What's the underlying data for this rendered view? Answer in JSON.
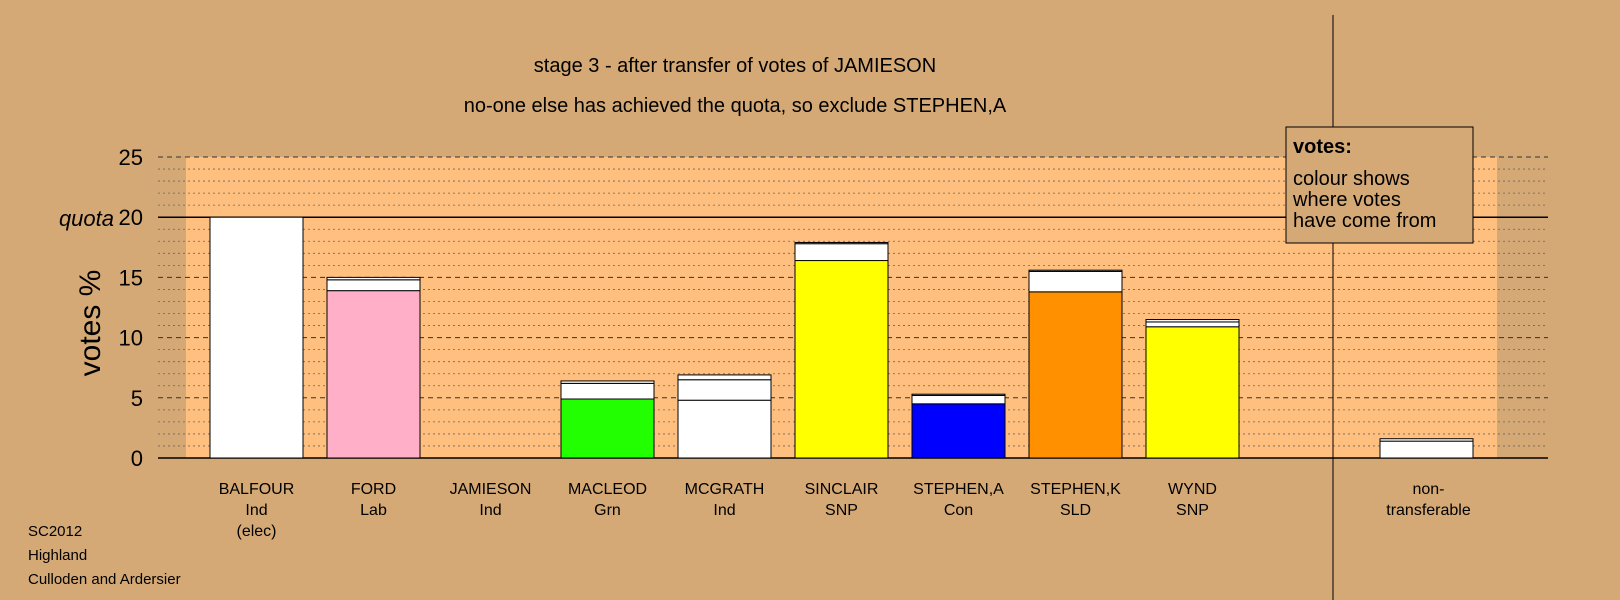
{
  "chart_data": {
    "type": "bar",
    "title_lines": [
      "stage 3 - after transfer of votes of JAMIESON",
      "no-one else has achieved the quota, so exclude STEPHEN,A"
    ],
    "ylabel": "votes %",
    "ylim": [
      0,
      25
    ],
    "yticks": [
      0,
      5,
      10,
      15,
      20,
      25
    ],
    "grid": true,
    "quota": {
      "label": "quota",
      "value": 20
    },
    "legend": {
      "title": "votes:",
      "lines": [
        "colour shows",
        "where votes",
        "have come from"
      ],
      "position": "top-right"
    },
    "candidates": [
      {
        "name": "BALFOUR",
        "party": "Ind",
        "note": "(elec)",
        "color": "#FFFFFF",
        "segments": [
          20
        ]
      },
      {
        "name": "FORD",
        "party": "Lab",
        "color": "#FFB0C8",
        "segments": [
          13.9,
          0.9,
          0.2
        ]
      },
      {
        "name": "JAMIESON",
        "party": "Ind",
        "color": "#FFFFFF",
        "segments": []
      },
      {
        "name": "MACLEOD",
        "party": "Grn",
        "color": "#22FF00",
        "segments": [
          4.9,
          1.3,
          0.2
        ]
      },
      {
        "name": "MCGRATH",
        "party": "Ind",
        "color": "#FFFFFF",
        "segments": [
          4.8,
          1.7,
          0.4
        ]
      },
      {
        "name": "SINCLAIR",
        "party": "SNP",
        "color": "#FFFF00",
        "segments": [
          16.4,
          1.4,
          0.1
        ]
      },
      {
        "name": "STEPHEN,A",
        "party": "Con",
        "color": "#0000FF",
        "segments": [
          4.5,
          0.7,
          0.1
        ]
      },
      {
        "name": "STEPHEN,K",
        "party": "SLD",
        "color": "#FF9000",
        "segments": [
          13.8,
          1.7,
          0.1
        ]
      },
      {
        "name": "WYND",
        "party": "SNP",
        "color": "#FFFF00",
        "segments": [
          10.9,
          0.4,
          0.2
        ]
      }
    ],
    "nontransferable": {
      "label_lines": [
        "non-",
        "transferable"
      ],
      "segments": [
        1.4,
        0.2
      ]
    }
  },
  "footer": {
    "election": "SC2012",
    "council": "Highland",
    "ward": "Culloden and Ardersier"
  }
}
